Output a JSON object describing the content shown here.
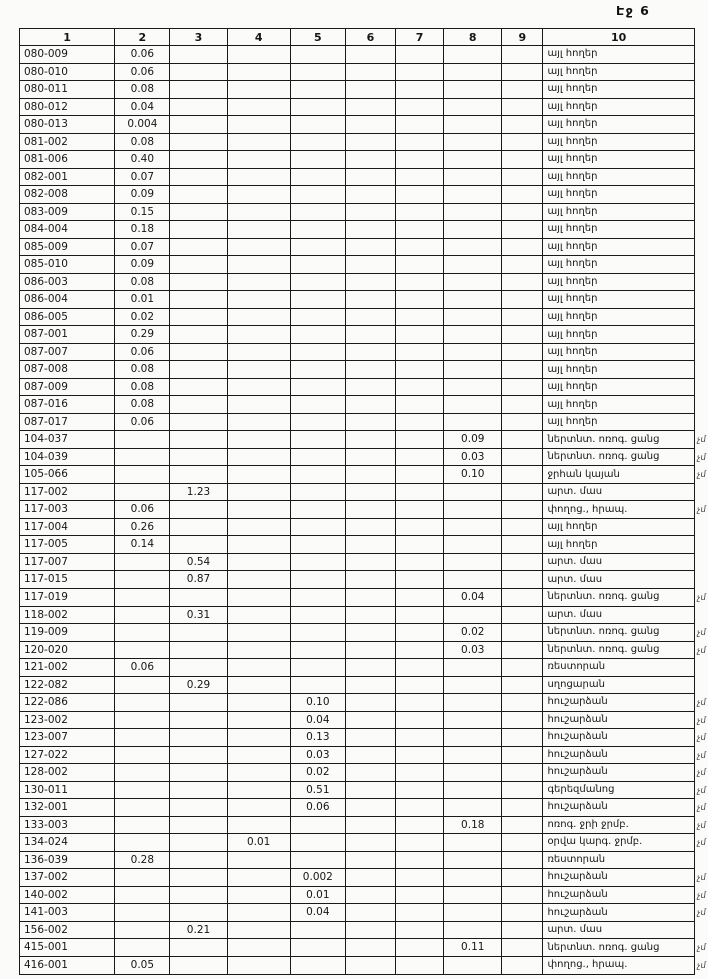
{
  "page": {
    "label": "Էջ 6"
  },
  "table": {
    "headers": [
      "1",
      "2",
      "3",
      "4",
      "5",
      "6",
      "7",
      "8",
      "9",
      "10"
    ],
    "note_mark": "չմ",
    "rows": [
      [
        "080-009",
        "0.06",
        "",
        "",
        "",
        "",
        "",
        "",
        "",
        "այլ հողեր",
        ""
      ],
      [
        "080-010",
        "0.06",
        "",
        "",
        "",
        "",
        "",
        "",
        "",
        "այլ հողեր",
        ""
      ],
      [
        "080-011",
        "0.08",
        "",
        "",
        "",
        "",
        "",
        "",
        "",
        "այլ հողեր",
        ""
      ],
      [
        "080-012",
        "0.04",
        "",
        "",
        "",
        "",
        "",
        "",
        "",
        "այլ հողեր",
        ""
      ],
      [
        "080-013",
        "0.004",
        "",
        "",
        "",
        "",
        "",
        "",
        "",
        "այլ հողեր",
        ""
      ],
      [
        "081-002",
        "0.08",
        "",
        "",
        "",
        "",
        "",
        "",
        "",
        "այլ հողեր",
        ""
      ],
      [
        "081-006",
        "0.40",
        "",
        "",
        "",
        "",
        "",
        "",
        "",
        "այլ հողեր",
        ""
      ],
      [
        "082-001",
        "0.07",
        "",
        "",
        "",
        "",
        "",
        "",
        "",
        "այլ հողեր",
        ""
      ],
      [
        "082-008",
        "0.09",
        "",
        "",
        "",
        "",
        "",
        "",
        "",
        "այլ հողեր",
        ""
      ],
      [
        "083-009",
        "0.15",
        "",
        "",
        "",
        "",
        "",
        "",
        "",
        "այլ հողեր",
        ""
      ],
      [
        "084-004",
        "0.18",
        "",
        "",
        "",
        "",
        "",
        "",
        "",
        "այլ հողեր",
        ""
      ],
      [
        "085-009",
        "0.07",
        "",
        "",
        "",
        "",
        "",
        "",
        "",
        "այլ հողեր",
        ""
      ],
      [
        "085-010",
        "0.09",
        "",
        "",
        "",
        "",
        "",
        "",
        "",
        "այլ հողեր",
        ""
      ],
      [
        "086-003",
        "0.08",
        "",
        "",
        "",
        "",
        "",
        "",
        "",
        "այլ հողեր",
        ""
      ],
      [
        "086-004",
        "0.01",
        "",
        "",
        "",
        "",
        "",
        "",
        "",
        "այլ հողեր",
        ""
      ],
      [
        "086-005",
        "0.02",
        "",
        "",
        "",
        "",
        "",
        "",
        "",
        "այլ հողեր",
        ""
      ],
      [
        "087-001",
        "0.29",
        "",
        "",
        "",
        "",
        "",
        "",
        "",
        "այլ հողեր",
        ""
      ],
      [
        "087-007",
        "0.06",
        "",
        "",
        "",
        "",
        "",
        "",
        "",
        "այլ հողեր",
        ""
      ],
      [
        "087-008",
        "0.08",
        "",
        "",
        "",
        "",
        "",
        "",
        "",
        "այլ հողեր",
        ""
      ],
      [
        "087-009",
        "0.08",
        "",
        "",
        "",
        "",
        "",
        "",
        "",
        "այլ հողեր",
        ""
      ],
      [
        "087-016",
        "0.08",
        "",
        "",
        "",
        "",
        "",
        "",
        "",
        "այլ հողեր",
        ""
      ],
      [
        "087-017",
        "0.06",
        "",
        "",
        "",
        "",
        "",
        "",
        "",
        "այլ հողեր",
        ""
      ],
      [
        "104-037",
        "",
        "",
        "",
        "",
        "",
        "",
        "0.09",
        "",
        "ներտնտ. ոռոգ. ցանց",
        "չմ"
      ],
      [
        "104-039",
        "",
        "",
        "",
        "",
        "",
        "",
        "0.03",
        "",
        "ներտնտ. ոռոգ. ցանց",
        "չմ"
      ],
      [
        "105-066",
        "",
        "",
        "",
        "",
        "",
        "",
        "0.10",
        "",
        "ջրհան կայան",
        "չմ"
      ],
      [
        "117-002",
        "",
        "1.23",
        "",
        "",
        "",
        "",
        "",
        "",
        "արտ. մաս",
        ""
      ],
      [
        "117-003",
        "0.06",
        "",
        "",
        "",
        "",
        "",
        "",
        "",
        "փողոց., հրապ.",
        "չմ"
      ],
      [
        "117-004",
        "0.26",
        "",
        "",
        "",
        "",
        "",
        "",
        "",
        "այլ հողեր",
        ""
      ],
      [
        "117-005",
        "0.14",
        "",
        "",
        "",
        "",
        "",
        "",
        "",
        "այլ հողեր",
        ""
      ],
      [
        "117-007",
        "",
        "0.54",
        "",
        "",
        "",
        "",
        "",
        "",
        "արտ. մաս",
        ""
      ],
      [
        "117-015",
        "",
        "0.87",
        "",
        "",
        "",
        "",
        "",
        "",
        "արտ. մաս",
        ""
      ],
      [
        "117-019",
        "",
        "",
        "",
        "",
        "",
        "",
        "0.04",
        "",
        "ներտնտ. ոռոգ. ցանց",
        "չմ"
      ],
      [
        "118-002",
        "",
        "0.31",
        "",
        "",
        "",
        "",
        "",
        "",
        "արտ. մաս",
        ""
      ],
      [
        "119-009",
        "",
        "",
        "",
        "",
        "",
        "",
        "0.02",
        "",
        "ներտնտ. ոռոգ. ցանց",
        "չմ"
      ],
      [
        "120-020",
        "",
        "",
        "",
        "",
        "",
        "",
        "0.03",
        "",
        "ներտնտ. ոռոգ. ցանց",
        "չմ"
      ],
      [
        "121-002",
        "0.06",
        "",
        "",
        "",
        "",
        "",
        "",
        "",
        "ռեստորան",
        ""
      ],
      [
        "122-082",
        "",
        "0.29",
        "",
        "",
        "",
        "",
        "",
        "",
        "սղոցարան",
        ""
      ],
      [
        "122-086",
        "",
        "",
        "",
        "0.10",
        "",
        "",
        "",
        "",
        "հուշարձան",
        "չմ"
      ],
      [
        "123-002",
        "",
        "",
        "",
        "0.04",
        "",
        "",
        "",
        "",
        "հուշարձան",
        "չմ"
      ],
      [
        "123-007",
        "",
        "",
        "",
        "0.13",
        "",
        "",
        "",
        "",
        "հուշարձան",
        "չմ"
      ],
      [
        "127-022",
        "",
        "",
        "",
        "0.03",
        "",
        "",
        "",
        "",
        "հուշարձան",
        "չմ"
      ],
      [
        "128-002",
        "",
        "",
        "",
        "0.02",
        "",
        "",
        "",
        "",
        "հուշարձան",
        "չմ"
      ],
      [
        "130-011",
        "",
        "",
        "",
        "0.51",
        "",
        "",
        "",
        "",
        "գերեզմանոց",
        "չմ"
      ],
      [
        "132-001",
        "",
        "",
        "",
        "0.06",
        "",
        "",
        "",
        "",
        "հուշարձան",
        "չմ"
      ],
      [
        "133-003",
        "",
        "",
        "",
        "",
        "",
        "",
        "0.18",
        "",
        "ոռոգ. ջրի ջրմբ.",
        "չմ"
      ],
      [
        "134-024",
        "",
        "",
        "0.01",
        "",
        "",
        "",
        "",
        "",
        "օրվա կարգ. ջրմբ.",
        "չմ"
      ],
      [
        "136-039",
        "0.28",
        "",
        "",
        "",
        "",
        "",
        "",
        "",
        "ռեստորան",
        ""
      ],
      [
        "137-002",
        "",
        "",
        "",
        "0.002",
        "",
        "",
        "",
        "",
        "հուշարձան",
        "չմ"
      ],
      [
        "140-002",
        "",
        "",
        "",
        "0.01",
        "",
        "",
        "",
        "",
        "հուշարձան",
        "չմ"
      ],
      [
        "141-003",
        "",
        "",
        "",
        "0.04",
        "",
        "",
        "",
        "",
        "հուշարձան",
        "չմ"
      ],
      [
        "156-002",
        "",
        "0.21",
        "",
        "",
        "",
        "",
        "",
        "",
        "արտ. մաս",
        ""
      ],
      [
        "415-001",
        "",
        "",
        "",
        "",
        "",
        "",
        "0.11",
        "",
        "ներտնտ. ոռոգ. ցանց",
        "չմ"
      ],
      [
        "416-001",
        "0.05",
        "",
        "",
        "",
        "",
        "",
        "",
        "",
        "փողոց., հրապ.",
        "չմ"
      ]
    ]
  }
}
